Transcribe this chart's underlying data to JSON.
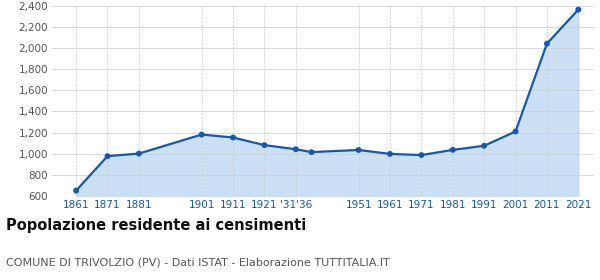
{
  "years": [
    1861,
    1871,
    1881,
    1901,
    1911,
    1921,
    1931,
    1936,
    1951,
    1961,
    1971,
    1981,
    1991,
    2001,
    2011,
    2021
  ],
  "population": [
    651,
    977,
    1001,
    1181,
    1153,
    1081,
    1042,
    1015,
    1035,
    998,
    987,
    1036,
    1075,
    1210,
    2040,
    2362
  ],
  "line_color": "#1458b0",
  "fill_color": "#cce0f5",
  "marker_color": "#1458b0",
  "bg_color": "#ffffff",
  "grid_color_y": "#cccccc",
  "grid_color_x": "#cccccc",
  "ylim": [
    600,
    2400
  ],
  "yticks": [
    800,
    1000,
    1200,
    1400,
    1600,
    1800,
    2000,
    2200,
    2400
  ],
  "xlim_left": 1853,
  "xlim_right": 2026,
  "x_tick_positions": [
    1861,
    1871,
    1881,
    1901,
    1911,
    1921,
    1931,
    1951,
    1961,
    1971,
    1981,
    1991,
    2001,
    2011,
    2021
  ],
  "x_tick_labels": [
    "1861",
    "1871",
    "1881",
    "1901",
    "1911",
    "1921",
    "'31'36",
    "1951",
    "1961",
    "1971",
    "1981",
    "1991",
    "2001",
    "2011",
    "2021"
  ],
  "title": "Popolazione residente ai censimenti",
  "subtitle": "COMUNE DI TRIVOLZIO (PV) - Dati ISTAT - Elaborazione TUTTITALIA.IT",
  "title_fontsize": 10.5,
  "subtitle_fontsize": 8.0,
  "tick_fontsize": 7.5
}
